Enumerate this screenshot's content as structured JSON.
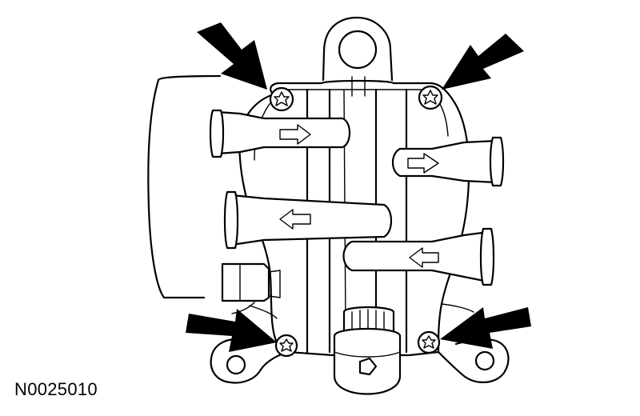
{
  "figure": {
    "id_label": "N0025010",
    "callouts": {
      "count": 4,
      "fill_color": "#000000",
      "icon": "arrow-icon"
    },
    "fasteners": {
      "count": 4,
      "head_type": "torx-icon"
    },
    "line_color": "#000000",
    "background_color": "#ffffff"
  }
}
